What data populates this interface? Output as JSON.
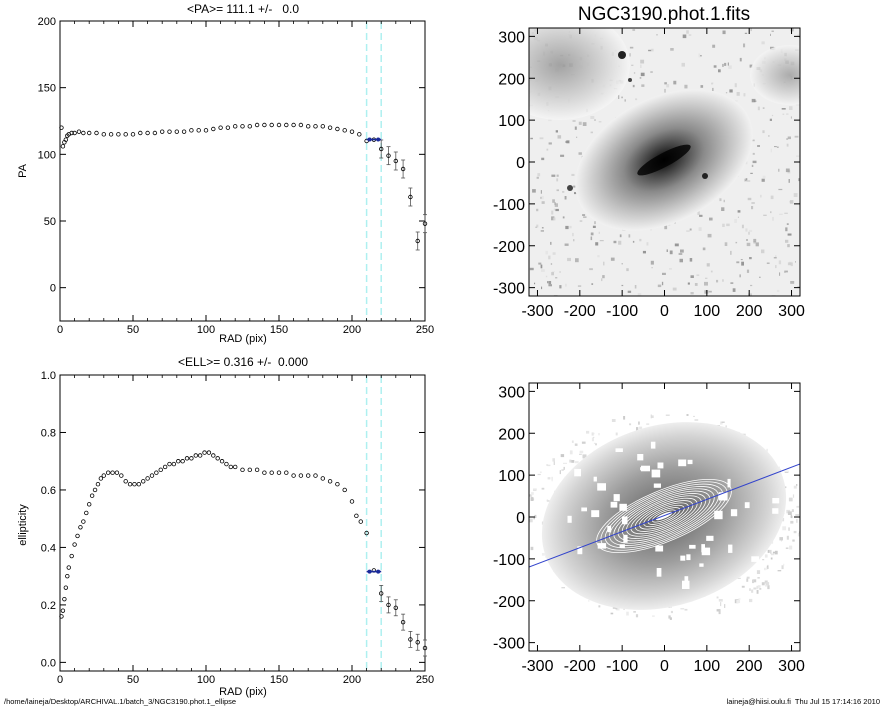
{
  "footer": {
    "path": "/home/laineja/Desktop/ARCHIVAL.1/batch_3/NGC3190.phot.1_ellipse",
    "user_stamp": "laineja@hiisi.oulu.fi  Thu Jul 15 17:14:16 2010"
  },
  "image_title": "NGC3190.phot.1.fits",
  "chart_data": [
    {
      "type": "scatter",
      "title": "<PA>= 111.1 +/-   0.0",
      "xlabel": "RAD (pix)",
      "ylabel": "PA",
      "xlim": [
        0,
        250
      ],
      "ylim": [
        -25,
        200
      ],
      "xticks": [
        0,
        50,
        100,
        150,
        200,
        250
      ],
      "yticks": [
        0,
        50,
        100,
        150,
        200
      ],
      "markers": [
        210,
        220
      ],
      "mean": {
        "x": [
          210,
          220
        ],
        "y": 111.1
      },
      "series": [
        {
          "values": [
            [
              1,
              120
            ],
            [
              2,
              106
            ],
            [
              3,
              109
            ],
            [
              4,
              111
            ],
            [
              5,
              114
            ],
            [
              6,
              115
            ],
            [
              8,
              116
            ],
            [
              10,
              116
            ],
            [
              13,
              117
            ],
            [
              16,
              116
            ],
            [
              20,
              116
            ],
            [
              25,
              116
            ],
            [
              30,
              115
            ],
            [
              35,
              115
            ],
            [
              40,
              115
            ],
            [
              45,
              115
            ],
            [
              50,
              115
            ],
            [
              55,
              116
            ],
            [
              60,
              116
            ],
            [
              65,
              116
            ],
            [
              70,
              117
            ],
            [
              75,
              117
            ],
            [
              80,
              117
            ],
            [
              85,
              117
            ],
            [
              90,
              118
            ],
            [
              95,
              118
            ],
            [
              100,
              118
            ],
            [
              105,
              119
            ],
            [
              110,
              120
            ],
            [
              115,
              120
            ],
            [
              120,
              121
            ],
            [
              125,
              121
            ],
            [
              130,
              121
            ],
            [
              135,
              122
            ],
            [
              140,
              122
            ],
            [
              145,
              122
            ],
            [
              150,
              122
            ],
            [
              155,
              122
            ],
            [
              160,
              122
            ],
            [
              165,
              122
            ],
            [
              170,
              121
            ],
            [
              175,
              121
            ],
            [
              180,
              121
            ],
            [
              185,
              120
            ],
            [
              190,
              119
            ],
            [
              195,
              118
            ],
            [
              200,
              117
            ],
            [
              205,
              115
            ],
            [
              210,
              110
            ],
            [
              215,
              111
            ],
            [
              220,
              104
            ],
            [
              225,
              99
            ],
            [
              230,
              95
            ],
            [
              235,
              89
            ],
            [
              240,
              68
            ],
            [
              245,
              35
            ],
            [
              250,
              48
            ]
          ]
        }
      ]
    },
    {
      "type": "scatter",
      "title": "<ELL>= 0.316 +/-  0.000",
      "xlabel": "RAD (pix)",
      "ylabel": "ellipticity",
      "xlim": [
        0,
        250
      ],
      "ylim": [
        -0.03,
        1.0
      ],
      "xticks": [
        0,
        50,
        100,
        150,
        200,
        250
      ],
      "yticks": [
        0.0,
        0.2,
        0.4,
        0.6,
        0.8,
        1.0
      ],
      "markers": [
        210,
        220
      ],
      "mean": {
        "x": [
          210,
          220
        ],
        "y": 0.316
      },
      "series": [
        {
          "values": [
            [
              1,
              0.16
            ],
            [
              2,
              0.18
            ],
            [
              3,
              0.22
            ],
            [
              4,
              0.26
            ],
            [
              5,
              0.3
            ],
            [
              6,
              0.33
            ],
            [
              8,
              0.37
            ],
            [
              10,
              0.41
            ],
            [
              12,
              0.44
            ],
            [
              14,
              0.47
            ],
            [
              16,
              0.49
            ],
            [
              18,
              0.52
            ],
            [
              20,
              0.55
            ],
            [
              22,
              0.58
            ],
            [
              24,
              0.6
            ],
            [
              26,
              0.62
            ],
            [
              28,
              0.64
            ],
            [
              30,
              0.65
            ],
            [
              33,
              0.66
            ],
            [
              36,
              0.66
            ],
            [
              39,
              0.66
            ],
            [
              42,
              0.65
            ],
            [
              45,
              0.63
            ],
            [
              48,
              0.62
            ],
            [
              51,
              0.62
            ],
            [
              54,
              0.62
            ],
            [
              57,
              0.63
            ],
            [
              60,
              0.64
            ],
            [
              63,
              0.65
            ],
            [
              66,
              0.66
            ],
            [
              69,
              0.67
            ],
            [
              72,
              0.68
            ],
            [
              75,
              0.69
            ],
            [
              78,
              0.69
            ],
            [
              81,
              0.7
            ],
            [
              84,
              0.7
            ],
            [
              87,
              0.71
            ],
            [
              90,
              0.71
            ],
            [
              93,
              0.72
            ],
            [
              96,
              0.72
            ],
            [
              99,
              0.73
            ],
            [
              102,
              0.73
            ],
            [
              105,
              0.72
            ],
            [
              108,
              0.71
            ],
            [
              111,
              0.7
            ],
            [
              114,
              0.69
            ],
            [
              117,
              0.68
            ],
            [
              120,
              0.68
            ],
            [
              125,
              0.67
            ],
            [
              130,
              0.67
            ],
            [
              135,
              0.67
            ],
            [
              140,
              0.66
            ],
            [
              145,
              0.66
            ],
            [
              150,
              0.66
            ],
            [
              155,
              0.66
            ],
            [
              160,
              0.65
            ],
            [
              165,
              0.65
            ],
            [
              170,
              0.65
            ],
            [
              175,
              0.65
            ],
            [
              180,
              0.64
            ],
            [
              185,
              0.63
            ],
            [
              190,
              0.62
            ],
            [
              195,
              0.6
            ],
            [
              200,
              0.56
            ],
            [
              203,
              0.51
            ],
            [
              206,
              0.49
            ],
            [
              210,
              0.45
            ],
            [
              215,
              0.32
            ],
            [
              220,
              0.24
            ],
            [
              225,
              0.2
            ],
            [
              230,
              0.19
            ],
            [
              235,
              0.14
            ],
            [
              240,
              0.08
            ],
            [
              245,
              0.07
            ],
            [
              250,
              0.05
            ]
          ]
        }
      ]
    },
    {
      "type": "heatmap",
      "title": "NGC3190.phot.1.fits",
      "xlim": [
        -320,
        320
      ],
      "ylim": [
        -320,
        320
      ],
      "xticks": [
        -300,
        -200,
        -100,
        0,
        100,
        200,
        300
      ],
      "yticks": [
        -300,
        -200,
        -100,
        0,
        100,
        200,
        300
      ]
    },
    {
      "type": "heatmap",
      "title": "",
      "xlim": [
        -320,
        320
      ],
      "ylim": [
        -320,
        320
      ],
      "xticks": [
        -300,
        -200,
        -100,
        0,
        100,
        200,
        300
      ],
      "yticks": [
        -300,
        -200,
        -100,
        0,
        100,
        200,
        300
      ],
      "line_color": "#3344cc",
      "contour_color": "#ffffff"
    }
  ],
  "colors": {
    "marker": "#aef0f0",
    "mean": "#1a2a9a",
    "points": "#000000"
  }
}
